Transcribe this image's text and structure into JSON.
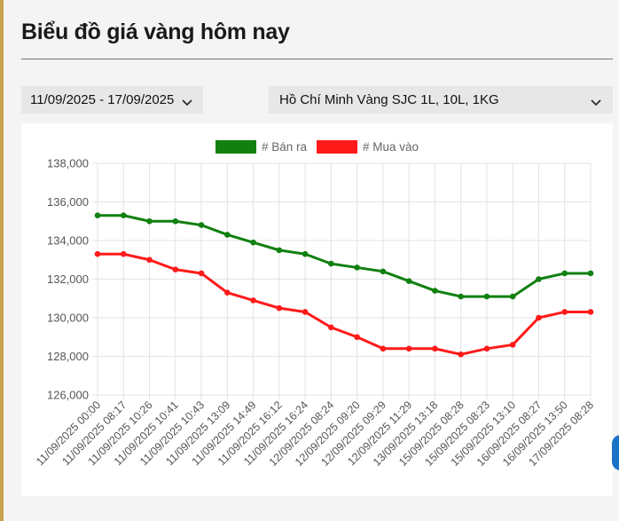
{
  "header": {
    "title": "Biểu đồ giá vàng hôm nay"
  },
  "filters": {
    "date_range": "11/09/2025 - 17/09/2025",
    "location": "Hồ Chí Minh Vàng SJC 1L, 10L, 1KG"
  },
  "icons": {
    "dropdown": "chevron-down-icon"
  },
  "colors": {
    "accent": "#c8a24a",
    "sell": "#118011",
    "buy": "#ff1a1a"
  },
  "chart_data": {
    "type": "line",
    "title": "",
    "xlabel": "",
    "ylabel": "",
    "categories": [
      "11/09/2025 00:00",
      "11/09/2025 08:17",
      "11/09/2025 10:26",
      "11/09/2025 10:41",
      "11/09/2025 10:43",
      "11/09/2025 13:09",
      "11/09/2025 14:49",
      "11/09/2025 16:12",
      "11/09/2025 16:24",
      "12/09/2025 08:24",
      "12/09/2025 09:20",
      "12/09/2025 09:29",
      "12/09/2025 11:29",
      "13/09/2025 13:18",
      "15/09/2025 08:28",
      "15/09/2025 08:23",
      "15/09/2025 13:10",
      "16/09/2025 08:27",
      "16/09/2025 13:50",
      "17/09/2025 08:28"
    ],
    "series": [
      {
        "name": "# Bán ra",
        "color": "#118011",
        "values": [
          135300,
          135300,
          135000,
          135000,
          134800,
          134300,
          133900,
          133500,
          133300,
          132800,
          132600,
          132400,
          131900,
          131400,
          131100,
          131100,
          131100,
          132000,
          132300,
          132300
        ]
      },
      {
        "name": "# Mua vào",
        "color": "#ff1a1a",
        "values": [
          133300,
          133300,
          133000,
          132500,
          132300,
          131300,
          130900,
          130500,
          130300,
          129500,
          129000,
          128400,
          128400,
          128400,
          128100,
          128400,
          128600,
          130000,
          130300,
          130300
        ]
      }
    ],
    "ylim": [
      126000,
      138000
    ],
    "yticks": [
      126000,
      128000,
      130000,
      132000,
      134000,
      136000,
      138000
    ],
    "ytick_labels": [
      "126,000",
      "128,000",
      "130,000",
      "132,000",
      "134,000",
      "136,000",
      "138,000"
    ],
    "grid": true,
    "legend_position": "top-center"
  }
}
